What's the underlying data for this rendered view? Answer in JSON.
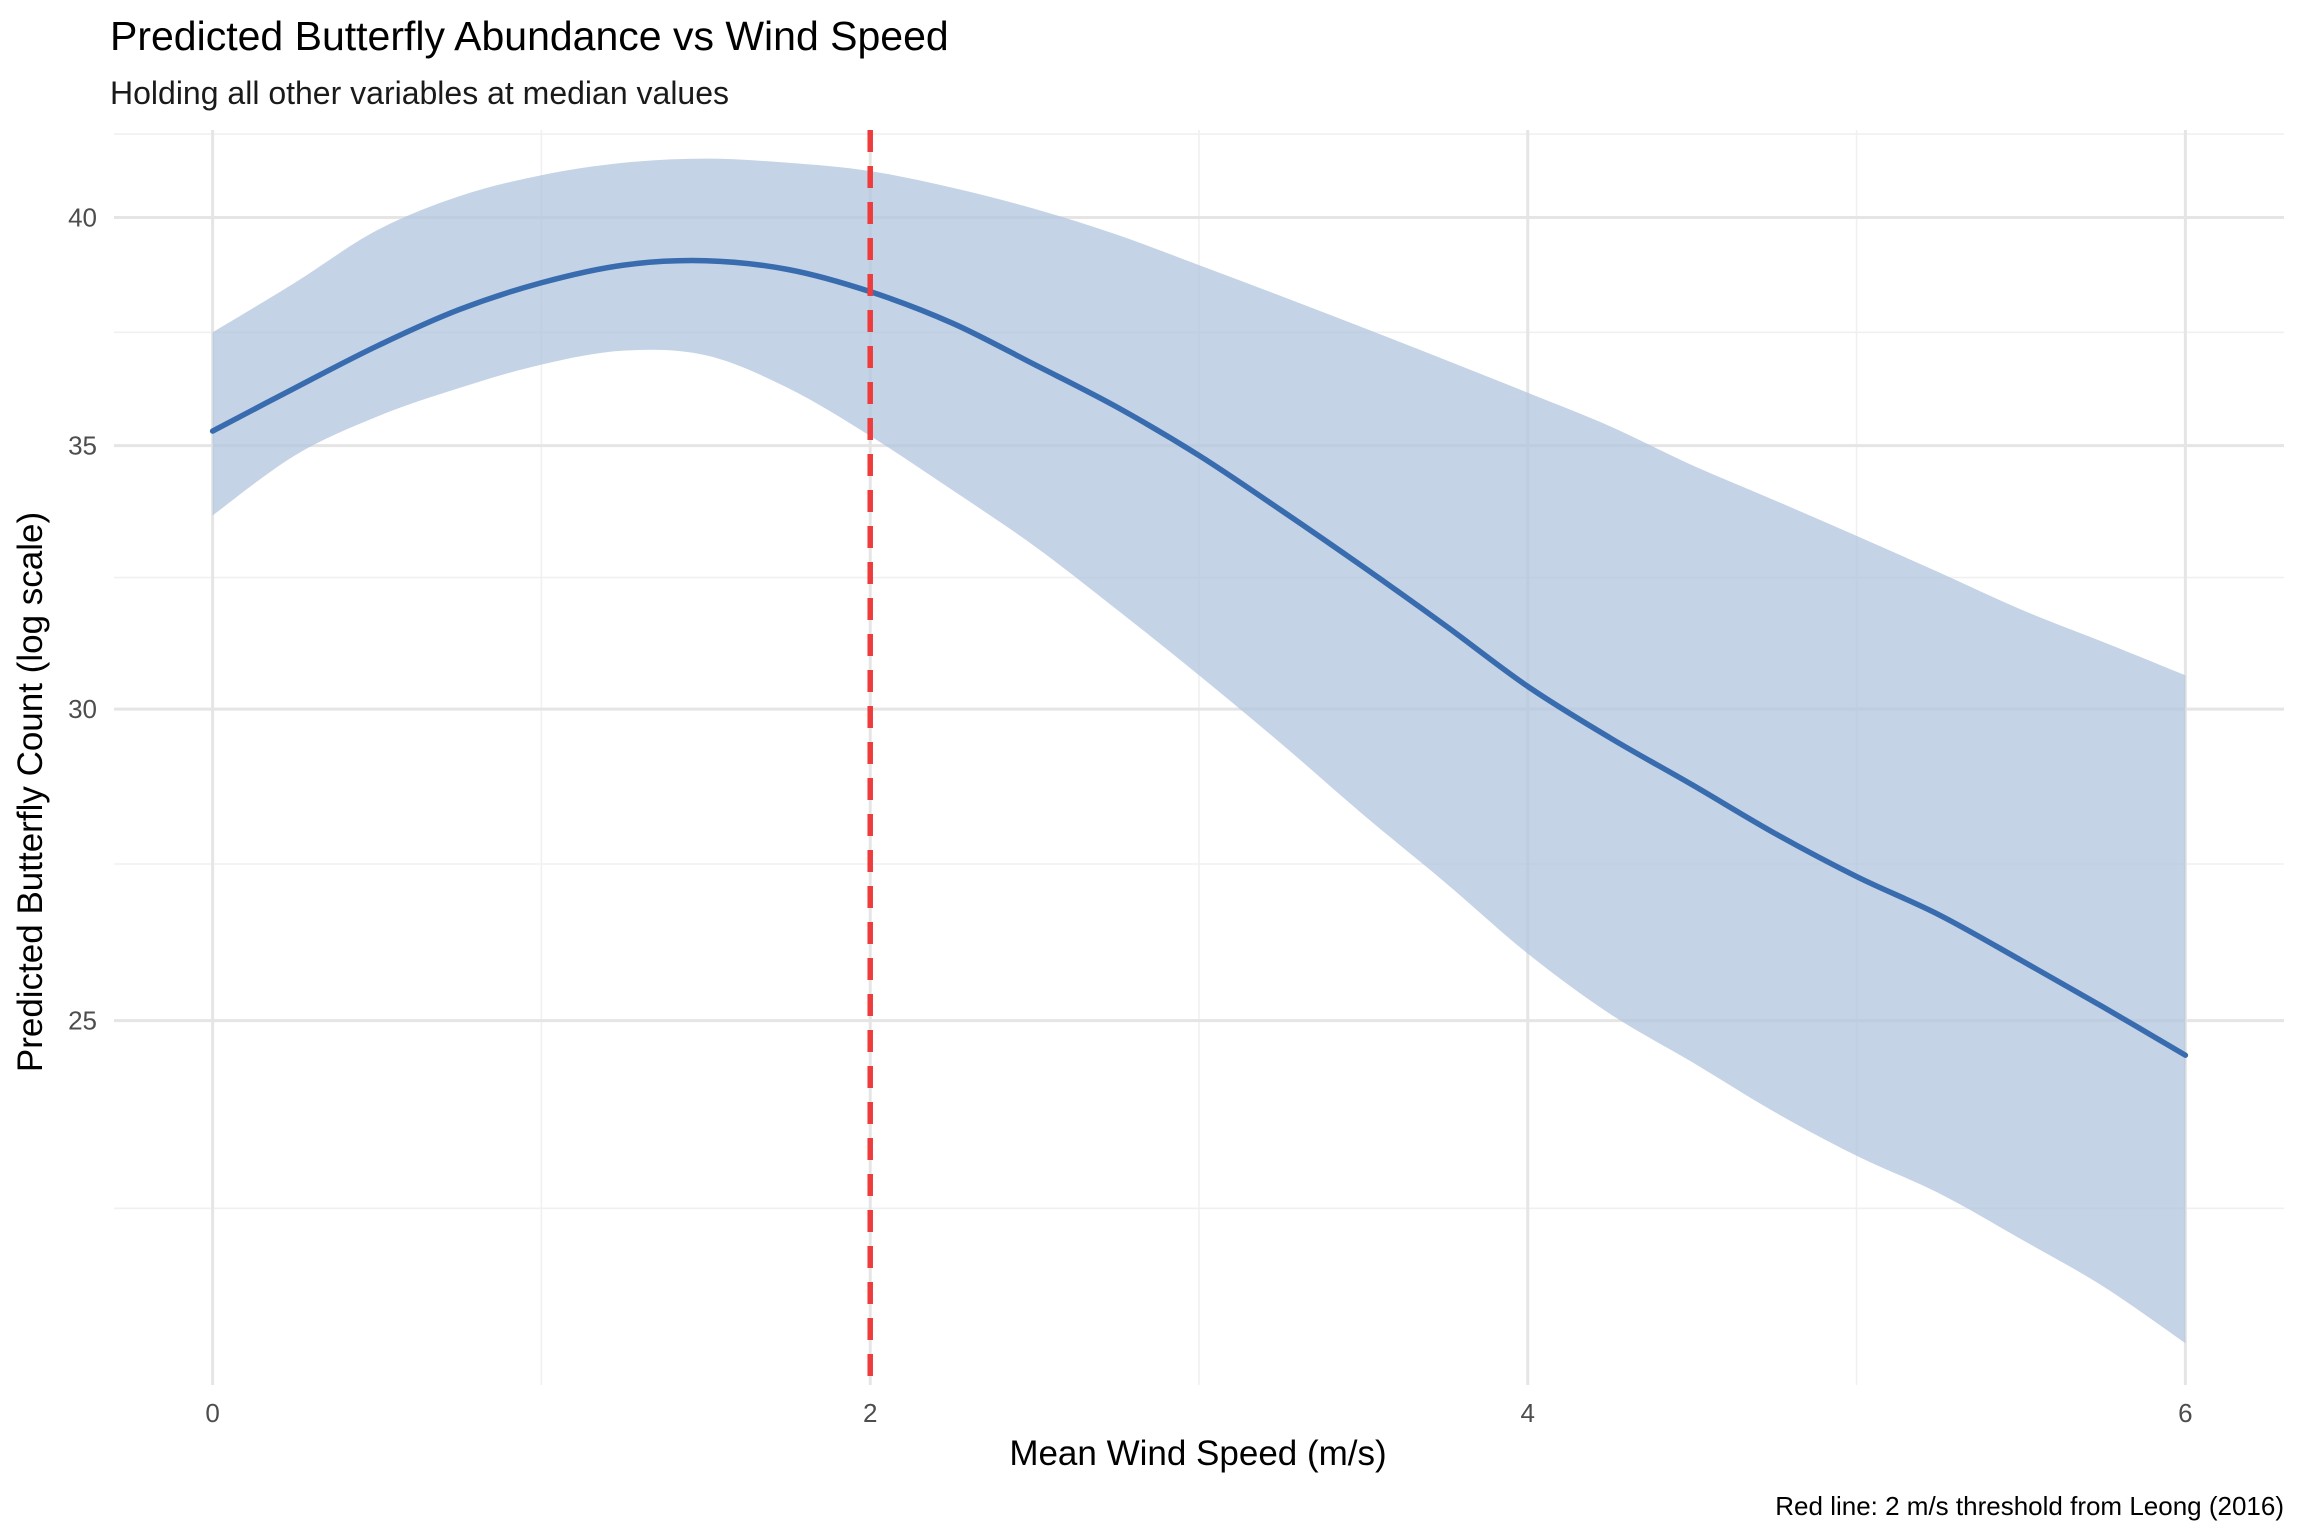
{
  "chart_data": {
    "type": "line",
    "title": "Predicted Butterfly Abundance vs Wind Speed",
    "subtitle": "Holding all other variables at median values",
    "xlabel": "Mean Wind Speed (m/s)",
    "ylabel": "Predicted Butterfly Count (log scale)",
    "caption": "Red line: 2 m/s threshold from Leong (2016)",
    "y_scale": "log",
    "xlim": [
      -0.3,
      6.3
    ],
    "ylim": [
      20.2,
      42.1
    ],
    "x_ticks": [
      0,
      2,
      4,
      6
    ],
    "x_tick_labels": [
      "0",
      "2",
      "4",
      "6"
    ],
    "x_minor_ticks": [
      1,
      3,
      5
    ],
    "y_ticks": [
      25,
      30,
      35,
      40
    ],
    "y_tick_labels": [
      "25",
      "30",
      "35",
      "40"
    ],
    "y_minor_ticks": [
      22.4,
      27.4,
      32.4,
      37.4,
      42.0
    ],
    "grid": true,
    "legend": "none",
    "colors": {
      "line": "#386CAF",
      "ribbon": "#B0C4DE",
      "threshold": "#EE3B3B",
      "grid_major": "#E5E5E5",
      "grid_minor": "#F0F0F0"
    },
    "series": [
      {
        "x": [
          0,
          0.25,
          0.5,
          0.75,
          1,
          1.25,
          1.5,
          1.75,
          2,
          2.25,
          2.5,
          2.75,
          3,
          3.25,
          3.5,
          3.75,
          4,
          4.25,
          4.5,
          4.75,
          5,
          5.25,
          5.5,
          5.75,
          6
        ],
        "y": [
          35.3,
          36.2,
          37.1,
          37.9,
          38.5,
          38.9,
          39.0,
          38.8,
          38.3,
          37.6,
          36.7,
          35.8,
          34.8,
          33.7,
          32.6,
          31.5,
          30.4,
          29.5,
          28.7,
          27.9,
          27.2,
          26.6,
          25.9,
          25.2,
          24.5
        ],
        "lower": [
          33.6,
          34.8,
          35.6,
          36.2,
          36.7,
          37.0,
          36.9,
          36.2,
          35.2,
          34.1,
          33.0,
          31.8,
          30.6,
          29.4,
          28.2,
          27.1,
          26.0,
          25.1,
          24.4,
          23.7,
          23.1,
          22.6,
          22.0,
          21.4,
          20.7
        ],
        "upper": [
          37.4,
          38.5,
          39.7,
          40.5,
          41.0,
          41.3,
          41.4,
          41.3,
          41.1,
          40.7,
          40.2,
          39.6,
          38.9,
          38.2,
          37.5,
          36.8,
          36.1,
          35.4,
          34.6,
          33.9,
          33.2,
          32.5,
          31.8,
          31.2,
          30.6
        ]
      }
    ],
    "annotations": [
      {
        "type": "vline",
        "x": 2,
        "style": "dashed"
      }
    ]
  }
}
